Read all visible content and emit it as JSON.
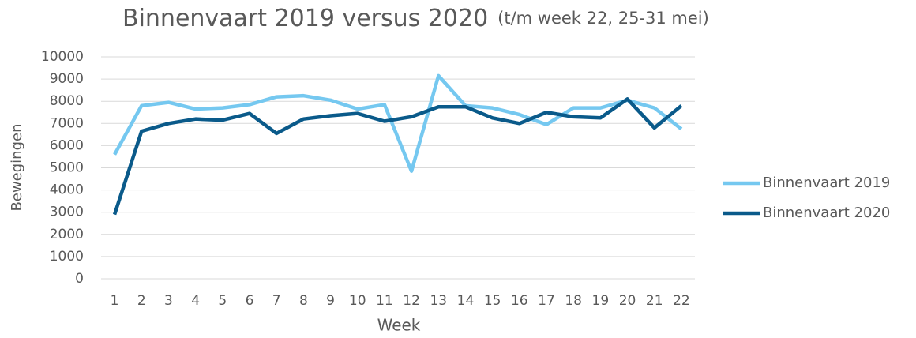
{
  "chart_data": {
    "type": "line",
    "title": "Binnenvaart 2019 versus 2020",
    "subtitle": "(t/m week 22, 25-31 mei)",
    "x_label": "Week",
    "y_label": "Bewegingen",
    "categories": [
      "1",
      "2",
      "3",
      "4",
      "5",
      "6",
      "7",
      "8",
      "9",
      "10",
      "11",
      "12",
      "13",
      "14",
      "15",
      "16",
      "17",
      "18",
      "19",
      "20",
      "21",
      "22"
    ],
    "series": [
      {
        "name": "Binnenvaart 2019",
        "color": "#75c8f0",
        "values": [
          5600,
          7800,
          7950,
          7650,
          7700,
          7850,
          8200,
          8250,
          8050,
          7650,
          7850,
          4850,
          9150,
          7800,
          7700,
          7400,
          6950,
          7700,
          7700,
          8050,
          7700,
          6750
        ]
      },
      {
        "name": "Binnenvaart 2020",
        "color": "#0a5a8a",
        "values": [
          2900,
          6650,
          7000,
          7200,
          7150,
          7450,
          6550,
          7200,
          7350,
          7450,
          7100,
          7300,
          7750,
          7750,
          7250,
          7000,
          7500,
          7300,
          7250,
          8100,
          6800,
          7800
        ]
      }
    ],
    "ylim": [
      0,
      10000
    ],
    "yticks": [
      0,
      1000,
      2000,
      3000,
      4000,
      5000,
      6000,
      7000,
      8000,
      9000,
      10000
    ],
    "grid": true,
    "legend": "right"
  }
}
